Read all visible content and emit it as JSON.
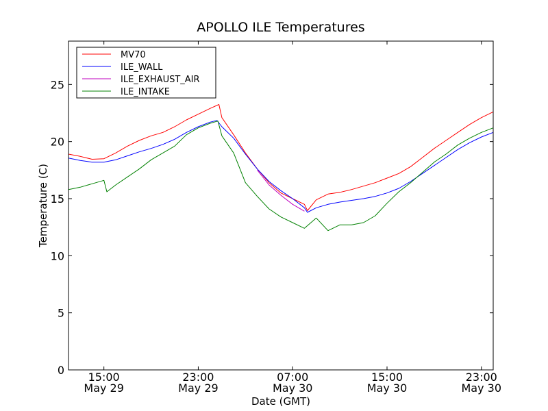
{
  "chart_data": {
    "type": "line",
    "title": "APOLLO ILE Temperatures",
    "xlabel": "Date (GMT)",
    "ylabel": "Temperature (C)",
    "ylim": [
      0,
      28.8
    ],
    "xlim": [
      "2011-05-29 12:00",
      "2011-05-31 00:00"
    ],
    "grid": false,
    "legend_position": "top-left",
    "x_ticks": [
      {
        "time": "2011-05-29 15:00",
        "line1": "15:00",
        "line2": "May 29"
      },
      {
        "time": "2011-05-29 23:00",
        "line1": "23:00",
        "line2": "May 29"
      },
      {
        "time": "2011-05-30 07:00",
        "line1": "07:00",
        "line2": "May 30"
      },
      {
        "time": "2011-05-30 15:00",
        "line1": "15:00",
        "line2": "May 30"
      },
      {
        "time": "2011-05-30 23:00",
        "line1": "23:00",
        "line2": "May 30"
      }
    ],
    "y_ticks": [
      0,
      5,
      10,
      15,
      20,
      25
    ],
    "series": [
      {
        "name": "MV70",
        "color": "#ff0000",
        "points": [
          [
            "2011-05-29 12:00",
            18.9
          ],
          [
            "2011-05-29 13:00",
            18.7
          ],
          [
            "2011-05-29 14:00",
            18.45
          ],
          [
            "2011-05-29 15:00",
            18.5
          ],
          [
            "2011-05-29 16:00",
            19.0
          ],
          [
            "2011-05-29 17:00",
            19.6
          ],
          [
            "2011-05-29 18:00",
            20.1
          ],
          [
            "2011-05-29 19:00",
            20.5
          ],
          [
            "2011-05-29 20:00",
            20.8
          ],
          [
            "2011-05-29 21:00",
            21.3
          ],
          [
            "2011-05-29 22:00",
            21.9
          ],
          [
            "2011-05-29 23:00",
            22.4
          ],
          [
            "2011-05-30 00:00",
            22.9
          ],
          [
            "2011-05-30 00:45",
            23.25
          ],
          [
            "2011-05-30 01:00",
            22.1
          ],
          [
            "2011-05-30 02:00",
            20.6
          ],
          [
            "2011-05-30 03:00",
            19.0
          ],
          [
            "2011-05-30 04:00",
            17.6
          ],
          [
            "2011-05-30 05:00",
            16.4
          ],
          [
            "2011-05-30 06:00",
            15.5
          ],
          [
            "2011-05-30 07:00",
            15.0
          ],
          [
            "2011-05-30 08:00",
            14.5
          ],
          [
            "2011-05-30 08:15",
            13.95
          ],
          [
            "2011-05-30 09:00",
            14.9
          ],
          [
            "2011-05-30 10:00",
            15.4
          ],
          [
            "2011-05-30 11:00",
            15.55
          ],
          [
            "2011-05-30 12:00",
            15.8
          ],
          [
            "2011-05-30 13:00",
            16.1
          ],
          [
            "2011-05-30 14:00",
            16.4
          ],
          [
            "2011-05-30 15:00",
            16.8
          ],
          [
            "2011-05-30 16:00",
            17.2
          ],
          [
            "2011-05-30 17:00",
            17.8
          ],
          [
            "2011-05-30 18:00",
            18.6
          ],
          [
            "2011-05-30 19:00",
            19.4
          ],
          [
            "2011-05-30 20:00",
            20.1
          ],
          [
            "2011-05-30 21:00",
            20.8
          ],
          [
            "2011-05-30 22:00",
            21.5
          ],
          [
            "2011-05-30 23:00",
            22.1
          ],
          [
            "2011-05-31 00:00",
            22.6
          ]
        ]
      },
      {
        "name": "ILE_WALL",
        "color": "#0000ff",
        "points": [
          [
            "2011-05-29 12:00",
            18.55
          ],
          [
            "2011-05-29 13:00",
            18.35
          ],
          [
            "2011-05-29 14:00",
            18.2
          ],
          [
            "2011-05-29 15:00",
            18.2
          ],
          [
            "2011-05-29 16:00",
            18.4
          ],
          [
            "2011-05-29 17:00",
            18.75
          ],
          [
            "2011-05-29 18:00",
            19.1
          ],
          [
            "2011-05-29 19:00",
            19.4
          ],
          [
            "2011-05-29 20:00",
            19.75
          ],
          [
            "2011-05-29 21:00",
            20.2
          ],
          [
            "2011-05-29 22:00",
            20.8
          ],
          [
            "2011-05-29 23:00",
            21.3
          ],
          [
            "2011-05-30 00:00",
            21.7
          ],
          [
            "2011-05-30 00:35",
            21.85
          ],
          [
            "2011-05-30 01:00",
            21.3
          ],
          [
            "2011-05-30 02:00",
            20.3
          ],
          [
            "2011-05-30 03:00",
            18.9
          ],
          [
            "2011-05-30 04:00",
            17.6
          ],
          [
            "2011-05-30 05:00",
            16.5
          ],
          [
            "2011-05-30 06:00",
            15.7
          ],
          [
            "2011-05-30 07:00",
            15.0
          ],
          [
            "2011-05-30 08:00",
            14.2
          ],
          [
            "2011-05-30 08:15",
            13.8
          ],
          [
            "2011-05-30 09:00",
            14.2
          ],
          [
            "2011-05-30 10:00",
            14.5
          ],
          [
            "2011-05-30 11:00",
            14.7
          ],
          [
            "2011-05-30 12:00",
            14.85
          ],
          [
            "2011-05-30 13:00",
            15.0
          ],
          [
            "2011-05-30 14:00",
            15.2
          ],
          [
            "2011-05-30 15:00",
            15.5
          ],
          [
            "2011-05-30 16:00",
            15.9
          ],
          [
            "2011-05-30 17:00",
            16.5
          ],
          [
            "2011-05-30 18:00",
            17.2
          ],
          [
            "2011-05-30 19:00",
            17.9
          ],
          [
            "2011-05-30 20:00",
            18.6
          ],
          [
            "2011-05-30 21:00",
            19.3
          ],
          [
            "2011-05-30 22:00",
            19.9
          ],
          [
            "2011-05-30 23:00",
            20.4
          ],
          [
            "2011-05-31 00:00",
            20.8
          ]
        ]
      },
      {
        "name": "ILE_EXHAUST_AIR",
        "color": "#bf00bf",
        "points": [
          [
            "2011-05-30 04:00",
            17.5
          ],
          [
            "2011-05-30 05:00",
            16.2
          ],
          [
            "2011-05-30 06:00",
            15.3
          ],
          [
            "2011-05-30 07:00",
            14.5
          ],
          [
            "2011-05-30 08:00",
            13.9
          ]
        ]
      },
      {
        "name": "ILE_INTAKE",
        "color": "#008000",
        "points": [
          [
            "2011-05-29 12:00",
            15.8
          ],
          [
            "2011-05-29 13:00",
            16.0
          ],
          [
            "2011-05-29 14:00",
            16.3
          ],
          [
            "2011-05-29 15:00",
            16.6
          ],
          [
            "2011-05-29 15:15",
            15.6
          ],
          [
            "2011-05-29 16:00",
            16.2
          ],
          [
            "2011-05-29 17:00",
            16.9
          ],
          [
            "2011-05-29 18:00",
            17.6
          ],
          [
            "2011-05-29 19:00",
            18.4
          ],
          [
            "2011-05-29 20:00",
            19.0
          ],
          [
            "2011-05-29 21:00",
            19.6
          ],
          [
            "2011-05-29 22:00",
            20.6
          ],
          [
            "2011-05-29 23:00",
            21.2
          ],
          [
            "2011-05-30 00:00",
            21.6
          ],
          [
            "2011-05-30 00:40",
            21.8
          ],
          [
            "2011-05-30 01:00",
            20.5
          ],
          [
            "2011-05-30 02:00",
            19.0
          ],
          [
            "2011-05-30 03:00",
            16.4
          ],
          [
            "2011-05-30 04:00",
            15.2
          ],
          [
            "2011-05-30 05:00",
            14.1
          ],
          [
            "2011-05-30 06:00",
            13.4
          ],
          [
            "2011-05-30 07:00",
            12.9
          ],
          [
            "2011-05-30 08:00",
            12.4
          ],
          [
            "2011-05-30 09:00",
            13.3
          ],
          [
            "2011-05-30 10:00",
            12.2
          ],
          [
            "2011-05-30 11:00",
            12.7
          ],
          [
            "2011-05-30 12:00",
            12.7
          ],
          [
            "2011-05-30 13:00",
            12.9
          ],
          [
            "2011-05-30 14:00",
            13.5
          ],
          [
            "2011-05-30 15:00",
            14.6
          ],
          [
            "2011-05-30 16:00",
            15.6
          ],
          [
            "2011-05-30 17:00",
            16.4
          ],
          [
            "2011-05-30 18:00",
            17.3
          ],
          [
            "2011-05-30 19:00",
            18.2
          ],
          [
            "2011-05-30 20:00",
            18.9
          ],
          [
            "2011-05-30 21:00",
            19.7
          ],
          [
            "2011-05-30 22:00",
            20.3
          ],
          [
            "2011-05-30 23:00",
            20.8
          ],
          [
            "2011-05-31 00:00",
            21.2
          ]
        ]
      }
    ]
  }
}
